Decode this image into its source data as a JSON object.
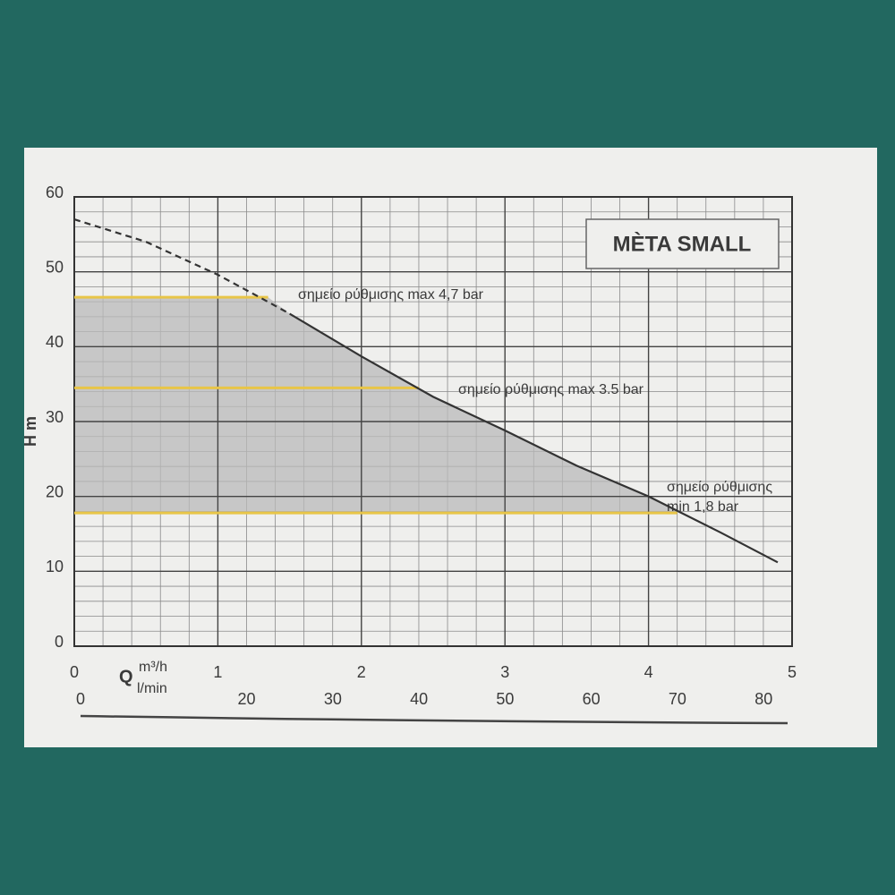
{
  "chart_data": {
    "type": "line",
    "title": "MÈTA SMALL",
    "y_label": "H m",
    "x_label": "Q",
    "x_unit": "m³/h",
    "x2_unit": "l/min",
    "x": [
      0,
      0.5,
      1,
      1.3,
      1.5,
      2,
      2.5,
      3,
      3.5,
      4,
      4.5,
      4.9
    ],
    "series": [
      {
        "color": "#333333",
        "dash": true,
        "values": [
          57.0,
          54.0,
          49.6,
          46.5,
          44.4,
          null,
          null,
          null,
          null,
          null,
          null,
          null
        ]
      },
      {
        "color": "#333333",
        "dash": false,
        "values": [
          null,
          null,
          null,
          null,
          44.4,
          38.7,
          33.3,
          28.8,
          24.1,
          20.0,
          15.2,
          11.2
        ]
      }
    ],
    "setpoints": [
      {
        "label": [
          "σημείο ρύθμισης max 4,7 bar"
        ],
        "value": 46.6,
        "x_end": 1.35
      },
      {
        "label": [
          "σημείο ρύθμισης max 3.5 bar"
        ],
        "value": 34.5,
        "x_end": 2.4
      },
      {
        "label": [
          "σημείο ρύθμισης",
          "min 1,8 bar"
        ],
        "value": 17.8,
        "x_end": 4.2
      }
    ],
    "setpoint_color": "#e8c547",
    "area_color": "#b9b9b9",
    "xlim": [
      0,
      5
    ],
    "xticks": [
      0,
      1,
      2,
      3,
      4,
      5
    ],
    "x2lim": [
      0,
      83.3
    ],
    "x2ticks": [
      0,
      20,
      30,
      40,
      50,
      60,
      70,
      80
    ],
    "ylim": [
      0,
      60
    ],
    "yticks": [
      0,
      10,
      20,
      30,
      40,
      50,
      60
    ],
    "grid": true,
    "minor_grid": {
      "x": 0.2,
      "y": 2
    }
  }
}
